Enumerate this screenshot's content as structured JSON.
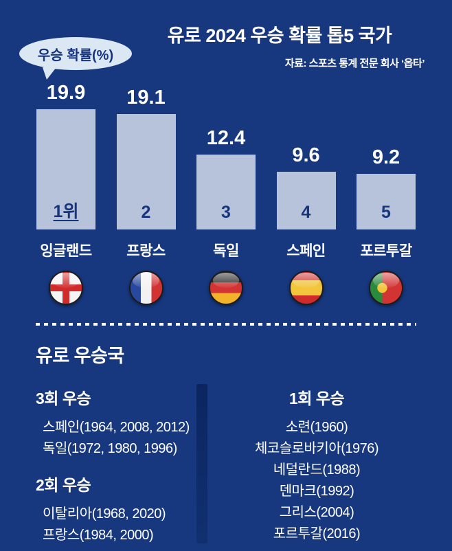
{
  "colors": {
    "background": "#17387f",
    "bar": "#b7c3da",
    "bubble_bg": "#dce7f4",
    "bubble_text": "#16357e",
    "divider_bar": "#0c2560",
    "text": "#ffffff"
  },
  "header": {
    "title": "유로 2024 우승 확률 톱5 국가",
    "source": "자료: 스포츠 통계 전문 회사 ‘옵타’",
    "bubble_label": "우승 확률(%)"
  },
  "chart_data": {
    "type": "bar",
    "title": "유로 2024 우승 확률 톱5 국가",
    "unit": "%",
    "categories": [
      "잉글랜드",
      "프랑스",
      "독일",
      "스페인",
      "포르투갈"
    ],
    "values": [
      19.9,
      19.1,
      12.4,
      9.6,
      9.2
    ],
    "ranks": [
      "1위",
      "2",
      "3",
      "4",
      "5"
    ],
    "flags": [
      "england",
      "france",
      "germany",
      "spain",
      "portugal"
    ],
    "ylim": [
      0,
      20
    ],
    "grid": false,
    "legend": false
  },
  "winners": {
    "title": "유로 우승국",
    "left_groups": [
      {
        "heading": "3회 우승",
        "items": [
          "스페인(1964, 2008, 2012)",
          "독일(1972, 1980, 1996)"
        ]
      },
      {
        "heading": "2회 우승",
        "items": [
          "이탈리아(1968, 2020)",
          "프랑스(1984, 2000)"
        ]
      }
    ],
    "right_groups": [
      {
        "heading": "1회 우승",
        "items": [
          "소련(1960)",
          "체코슬로바키아(1976)",
          "네덜란드(1988)",
          "덴마크(1992)",
          "그리스(2004)",
          "포르투갈(2016)"
        ]
      }
    ]
  }
}
